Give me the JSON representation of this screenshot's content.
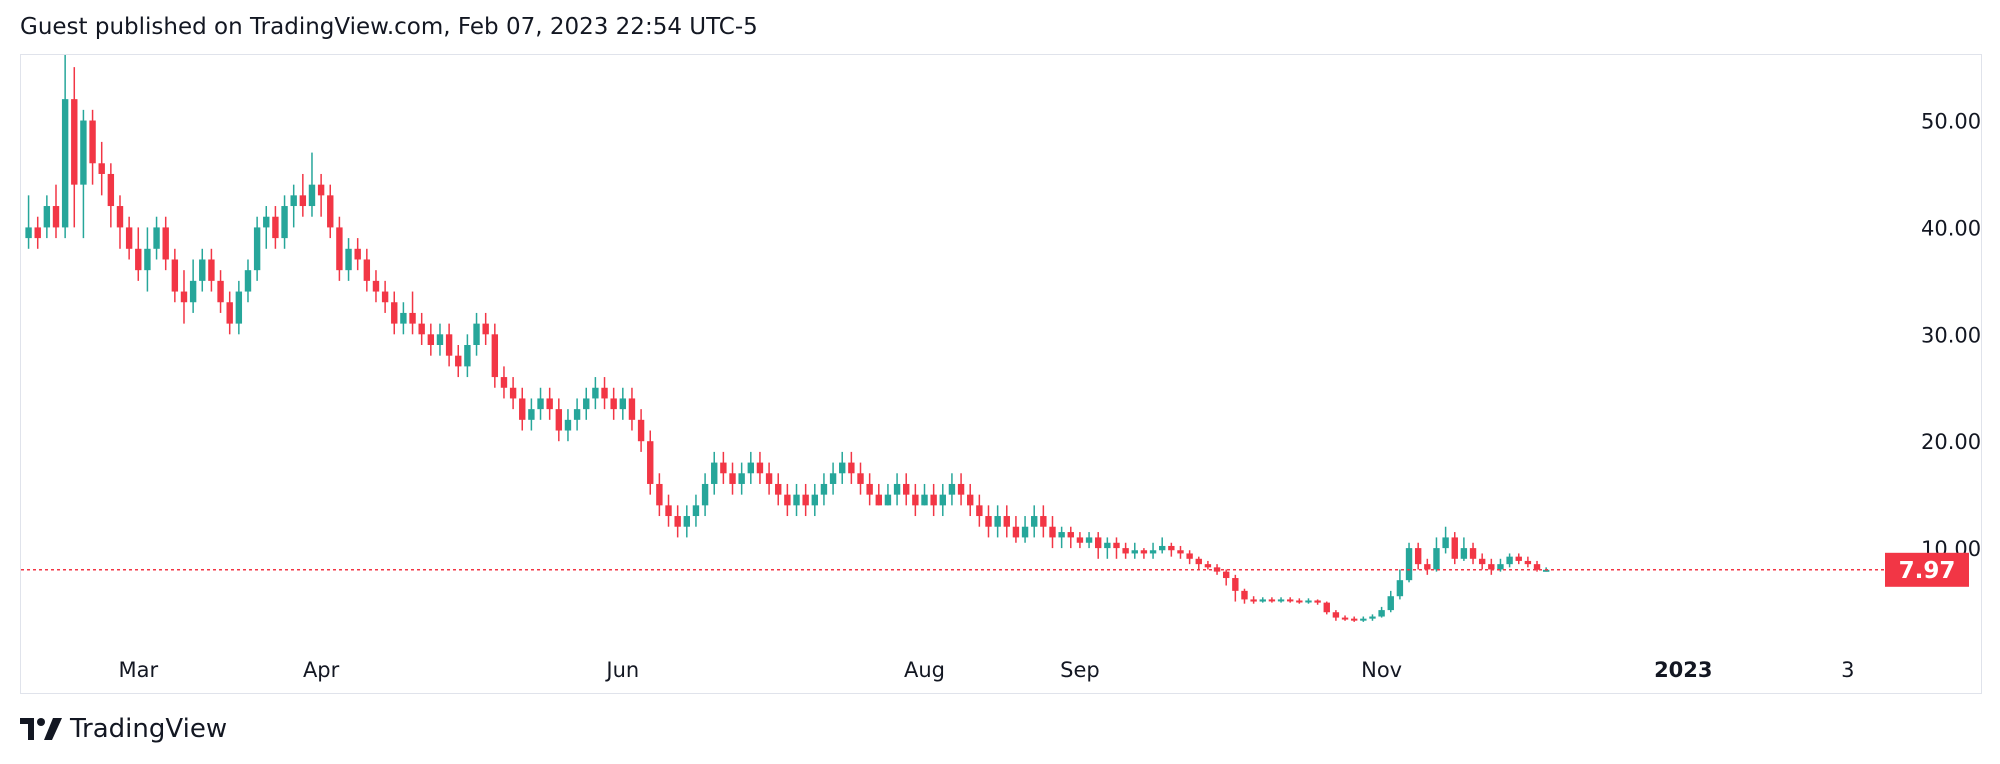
{
  "header": {
    "text": "Guest published on TradingView.com, Feb 07, 2023 22:54 UTC-5"
  },
  "footer": {
    "brand": "TradingView",
    "logo_icon": "tradingview-logo-icon"
  },
  "colors": {
    "up": "#26a69a",
    "down": "#f23645",
    "grid": "#e0e3eb",
    "last_price_line": "#f23645"
  },
  "chart_data": {
    "type": "candlestick",
    "title": "",
    "y_axis": {
      "position": "right",
      "range": [
        0,
        58
      ],
      "ticks": [
        "50.00",
        "40.00",
        "30.00",
        "20.00",
        "10.00"
      ]
    },
    "x_axis": {
      "ticks": [
        {
          "label": "Mar",
          "index": 12,
          "bold": false
        },
        {
          "label": "Apr",
          "index": 32,
          "bold": false
        },
        {
          "label": "Jun",
          "index": 65,
          "bold": false
        },
        {
          "label": "Aug",
          "index": 98,
          "bold": false
        },
        {
          "label": "Sep",
          "index": 115,
          "bold": false
        },
        {
          "label": "Nov",
          "index": 148,
          "bold": false
        },
        {
          "label": "2023",
          "index": 181,
          "bold": true
        },
        {
          "label": "3",
          "index": 199,
          "bold": false
        }
      ],
      "total_slots": 204
    },
    "last_price": {
      "value": 7.97,
      "label": "7.97"
    },
    "candles": [
      [
        39,
        40,
        43,
        38
      ],
      [
        40,
        39,
        41,
        38
      ],
      [
        40,
        42,
        43,
        39
      ],
      [
        42,
        40,
        44,
        39
      ],
      [
        40,
        52,
        57,
        39
      ],
      [
        52,
        44,
        55,
        40
      ],
      [
        44,
        50,
        51,
        39
      ],
      [
        50,
        46,
        51,
        44
      ],
      [
        46,
        45,
        48,
        43
      ],
      [
        45,
        42,
        46,
        40
      ],
      [
        42,
        40,
        43,
        38
      ],
      [
        40,
        38,
        41,
        37
      ],
      [
        38,
        36,
        40,
        35
      ],
      [
        36,
        38,
        40,
        34
      ],
      [
        38,
        40,
        41,
        37
      ],
      [
        40,
        37,
        41,
        36
      ],
      [
        37,
        34,
        38,
        33
      ],
      [
        34,
        33,
        36,
        31
      ],
      [
        33,
        35,
        37,
        32
      ],
      [
        35,
        37,
        38,
        34
      ],
      [
        37,
        35,
        38,
        34
      ],
      [
        35,
        33,
        36,
        32
      ],
      [
        33,
        31,
        34,
        30
      ],
      [
        31,
        34,
        35,
        30
      ],
      [
        34,
        36,
        37,
        33
      ],
      [
        36,
        40,
        41,
        35
      ],
      [
        40,
        41,
        42,
        38
      ],
      [
        41,
        39,
        42,
        38
      ],
      [
        39,
        42,
        43,
        38
      ],
      [
        42,
        43,
        44,
        40
      ],
      [
        43,
        42,
        45,
        41
      ],
      [
        42,
        44,
        47,
        41
      ],
      [
        44,
        43,
        45,
        41
      ],
      [
        43,
        40,
        44,
        39
      ],
      [
        40,
        36,
        41,
        35
      ],
      [
        36,
        38,
        39,
        35
      ],
      [
        38,
        37,
        39,
        36
      ],
      [
        37,
        35,
        38,
        34
      ],
      [
        35,
        34,
        36,
        33
      ],
      [
        34,
        33,
        35,
        32
      ],
      [
        33,
        31,
        34,
        30
      ],
      [
        31,
        32,
        33,
        30
      ],
      [
        32,
        31,
        34,
        30
      ],
      [
        31,
        30,
        32,
        29
      ],
      [
        30,
        29,
        31,
        28
      ],
      [
        29,
        30,
        31,
        28
      ],
      [
        30,
        28,
        31,
        27
      ],
      [
        28,
        27,
        29,
        26
      ],
      [
        27,
        29,
        30,
        26
      ],
      [
        29,
        31,
        32,
        28
      ],
      [
        31,
        30,
        32,
        29
      ],
      [
        30,
        26,
        31,
        25
      ],
      [
        26,
        25,
        27,
        24
      ],
      [
        25,
        24,
        26,
        23
      ],
      [
        24,
        22,
        25,
        21
      ],
      [
        22,
        23,
        24,
        21
      ],
      [
        23,
        24,
        25,
        22
      ],
      [
        24,
        23,
        25,
        22
      ],
      [
        23,
        21,
        24,
        20
      ],
      [
        21,
        22,
        23,
        20
      ],
      [
        22,
        23,
        24,
        21
      ],
      [
        23,
        24,
        25,
        22
      ],
      [
        24,
        25,
        26,
        23
      ],
      [
        25,
        24,
        26,
        23
      ],
      [
        24,
        23,
        25,
        22
      ],
      [
        23,
        24,
        25,
        22
      ],
      [
        24,
        22,
        25,
        21
      ],
      [
        22,
        20,
        23,
        19
      ],
      [
        20,
        16,
        21,
        15
      ],
      [
        16,
        14,
        17,
        13
      ],
      [
        14,
        13,
        15,
        12
      ],
      [
        13,
        12,
        14,
        11
      ],
      [
        12,
        13,
        14,
        11
      ],
      [
        13,
        14,
        15,
        12
      ],
      [
        14,
        16,
        17,
        13
      ],
      [
        16,
        18,
        19,
        15
      ],
      [
        18,
        17,
        19,
        16
      ],
      [
        17,
        16,
        18,
        15
      ],
      [
        16,
        17,
        18,
        15
      ],
      [
        17,
        18,
        19,
        16
      ],
      [
        18,
        17,
        19,
        16
      ],
      [
        17,
        16,
        18,
        15
      ],
      [
        16,
        15,
        17,
        14
      ],
      [
        15,
        14,
        16,
        13
      ],
      [
        14,
        15,
        16,
        13
      ],
      [
        15,
        14,
        16,
        13
      ],
      [
        14,
        15,
        16,
        13
      ],
      [
        15,
        16,
        17,
        14
      ],
      [
        16,
        17,
        18,
        15
      ],
      [
        17,
        18,
        19,
        16
      ],
      [
        18,
        17,
        19,
        16
      ],
      [
        17,
        16,
        18,
        15
      ],
      [
        16,
        15,
        17,
        14
      ],
      [
        15,
        14,
        16,
        14
      ],
      [
        14,
        15,
        16,
        14
      ],
      [
        15,
        16,
        17,
        14
      ],
      [
        16,
        15,
        17,
        14
      ],
      [
        15,
        14,
        16,
        13
      ],
      [
        14,
        15,
        16,
        14
      ],
      [
        15,
        14,
        16,
        13
      ],
      [
        14,
        15,
        16,
        13
      ],
      [
        15,
        16,
        17,
        14
      ],
      [
        16,
        15,
        17,
        14
      ],
      [
        15,
        14,
        16,
        13
      ],
      [
        14,
        13,
        15,
        12
      ],
      [
        13,
        12,
        14,
        11
      ],
      [
        12,
        13,
        14,
        11
      ],
      [
        13,
        12,
        14,
        11
      ],
      [
        12,
        11,
        13,
        10.5
      ],
      [
        11,
        12,
        13,
        10.5
      ],
      [
        12,
        13,
        14,
        11
      ],
      [
        13,
        12,
        14,
        11
      ],
      [
        12,
        11,
        13,
        10
      ],
      [
        11,
        11.5,
        12,
        10
      ],
      [
        11.5,
        11,
        12,
        10
      ],
      [
        11,
        10.5,
        11.5,
        10
      ],
      [
        10.5,
        11,
        11.5,
        10
      ],
      [
        11,
        10,
        11.5,
        9
      ],
      [
        10,
        10.5,
        11,
        9
      ],
      [
        10.5,
        10,
        11,
        9
      ],
      [
        10,
        9.5,
        10.5,
        9
      ],
      [
        9.5,
        9.8,
        10.5,
        9
      ],
      [
        9.8,
        9.5,
        10,
        9
      ],
      [
        9.5,
        9.8,
        10.5,
        9
      ],
      [
        9.8,
        10.2,
        11,
        9.5
      ],
      [
        10.2,
        9.8,
        10.5,
        9.2
      ],
      [
        9.8,
        9.5,
        10.2,
        9
      ],
      [
        9.5,
        9,
        9.8,
        8.5
      ],
      [
        9,
        8.5,
        9.2,
        8
      ],
      [
        8.5,
        8.2,
        8.8,
        8
      ],
      [
        8.2,
        7.8,
        8.5,
        7.5
      ],
      [
        7.8,
        7.2,
        8,
        6.5
      ],
      [
        7.2,
        6,
        7.5,
        5
      ],
      [
        6,
        5.2,
        6.2,
        4.8
      ],
      [
        5.2,
        5,
        5.5,
        4.8
      ],
      [
        5,
        5.2,
        5.4,
        4.9
      ],
      [
        5.2,
        5.1,
        5.4,
        4.9
      ],
      [
        5.1,
        5.2,
        5.4,
        4.9
      ],
      [
        5.2,
        5.1,
        5.4,
        4.9
      ],
      [
        5.1,
        5,
        5.3,
        4.8
      ],
      [
        5,
        5.1,
        5.3,
        4.8
      ],
      [
        5.1,
        4.9,
        5.2,
        4.7
      ],
      [
        4.9,
        4,
        5,
        3.8
      ],
      [
        4,
        3.5,
        4.2,
        3.2
      ],
      [
        3.5,
        3.4,
        3.7,
        3.2
      ],
      [
        3.4,
        3.3,
        3.6,
        3.1
      ],
      [
        3.3,
        3.4,
        3.6,
        3.1
      ],
      [
        3.4,
        3.6,
        3.8,
        3.2
      ],
      [
        3.6,
        4.2,
        4.5,
        3.5
      ],
      [
        4.2,
        5.5,
        6,
        4
      ],
      [
        5.5,
        7,
        8,
        5.2
      ],
      [
        7,
        10,
        10.5,
        6.8
      ],
      [
        10,
        8.5,
        10.5,
        8
      ],
      [
        8.5,
        8,
        9,
        7.5
      ],
      [
        8,
        10,
        11,
        7.8
      ],
      [
        10,
        11,
        12,
        9.5
      ],
      [
        11,
        9,
        11.5,
        8.5
      ],
      [
        9,
        10,
        11,
        8.8
      ],
      [
        10,
        9,
        10.5,
        8.5
      ],
      [
        9,
        8.5,
        9.5,
        8
      ],
      [
        8.5,
        8,
        9,
        7.5
      ],
      [
        8,
        8.5,
        9,
        7.8
      ],
      [
        8.5,
        9.2,
        9.5,
        8.2
      ],
      [
        9.2,
        8.8,
        9.5,
        8.5
      ],
      [
        8.8,
        8.5,
        9.2,
        8.2
      ],
      [
        8.5,
        7.97,
        8.8,
        7.8
      ],
      [
        7.97,
        7.97,
        8.2,
        7.8
      ]
    ]
  }
}
